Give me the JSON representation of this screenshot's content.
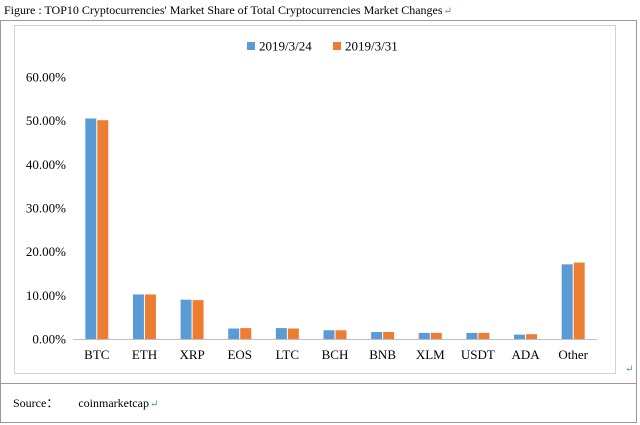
{
  "figure": {
    "title": "Figure : TOP10 Cryptocurrencies' Market Share of Total Cryptocurrencies Market Changes",
    "return_mark": "↵"
  },
  "source": {
    "label": "Source：",
    "value": "coinmarketcap"
  },
  "chart_data": {
    "type": "bar",
    "categories": [
      "BTC",
      "ETH",
      "XRP",
      "EOS",
      "LTC",
      "BCH",
      "BNB",
      "XLM",
      "USDT",
      "ADA",
      "Other"
    ],
    "series": [
      {
        "name": "2019/3/24",
        "color": "#5b9bd5",
        "values": [
          50.5,
          10.2,
          9.0,
          2.4,
          2.5,
          2.0,
          1.6,
          1.4,
          1.4,
          1.0,
          17.1
        ]
      },
      {
        "name": "2019/3/31",
        "color": "#ed7d31",
        "values": [
          50.1,
          10.2,
          8.9,
          2.5,
          2.4,
          2.0,
          1.6,
          1.4,
          1.4,
          1.1,
          17.5
        ]
      }
    ],
    "yticks": [
      "0.00%",
      "10.00%",
      "20.00%",
      "30.00%",
      "40.00%",
      "50.00%",
      "60.00%"
    ],
    "ylim": [
      0,
      60
    ],
    "title": "",
    "xlabel": "",
    "ylabel": "",
    "grid": false,
    "legend_position": "top-center"
  }
}
